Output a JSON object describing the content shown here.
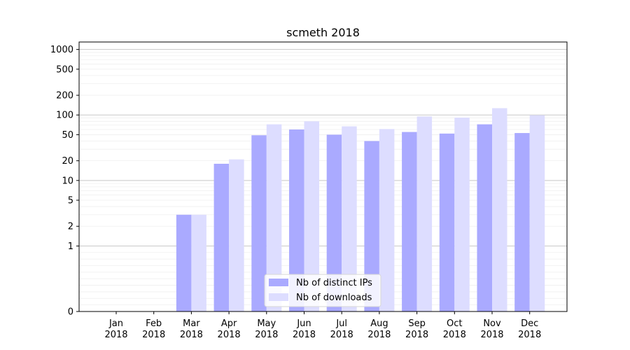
{
  "chart_data": {
    "type": "bar",
    "title": "scmeth 2018",
    "xlabel": "",
    "ylabel": "",
    "yscale": "symlog",
    "ylim": [
      0,
      1300
    ],
    "yticks": [
      0,
      1,
      2,
      5,
      10,
      20,
      50,
      100,
      200,
      500,
      1000
    ],
    "categories": [
      "Jan",
      "Feb",
      "Mar",
      "Apr",
      "May",
      "Jun",
      "Jul",
      "Aug",
      "Sep",
      "Oct",
      "Nov",
      "Dec"
    ],
    "category_year": "2018",
    "series": [
      {
        "name": "Nb of distinct IPs",
        "color": "#aaaaff",
        "values": [
          0,
          0,
          3,
          18,
          49,
          60,
          50,
          40,
          55,
          52,
          72,
          53
        ]
      },
      {
        "name": "Nb of downloads",
        "color": "#ddddff",
        "values": [
          0,
          0,
          3,
          21,
          72,
          80,
          67,
          61,
          95,
          91,
          127,
          99
        ]
      }
    ],
    "grid": true,
    "legend_position": "bottom-center"
  }
}
